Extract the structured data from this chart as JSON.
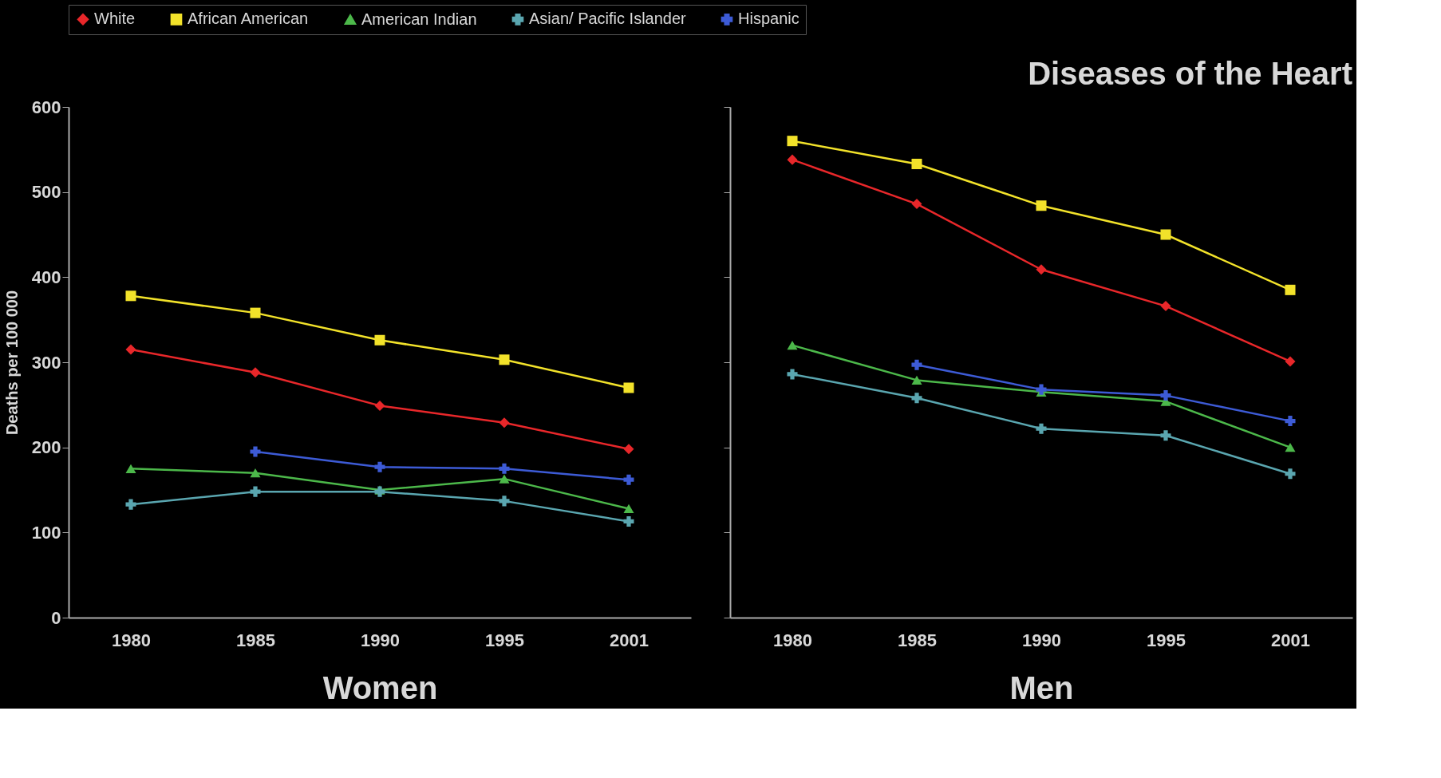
{
  "chart_data": [
    {
      "type": "line",
      "xlabel": "Women",
      "ylabel": "Deaths per 100 000",
      "categories": [
        "1980",
        "1985",
        "1990",
        "1995",
        "2001"
      ],
      "ylim": [
        0,
        600
      ],
      "yticks": [
        0,
        100,
        200,
        300,
        400,
        500,
        600
      ],
      "grid": false,
      "legend": "top",
      "series": [
        {
          "name": "White",
          "color": "#e8272a",
          "marker": "diamond",
          "values": [
            315,
            288,
            249,
            229,
            198
          ]
        },
        {
          "name": "African American",
          "color": "#f2e22a",
          "marker": "square",
          "values": [
            378,
            358,
            326,
            303,
            270
          ]
        },
        {
          "name": "American Indian",
          "color": "#4cb84a",
          "marker": "triangle",
          "values": [
            175,
            170,
            150,
            163,
            128
          ]
        },
        {
          "name": "Asian/ Pacific Islander",
          "color": "#5aa6b0",
          "marker": "cross",
          "values": [
            133,
            148,
            148,
            137,
            113
          ]
        },
        {
          "name": "Hispanic",
          "color": "#3d5bd6",
          "marker": "cross",
          "values": [
            null,
            195,
            177,
            175,
            162
          ]
        }
      ]
    },
    {
      "type": "line",
      "title": "Diseases of the Heart",
      "xlabel": "Men",
      "categories": [
        "1980",
        "1985",
        "1990",
        "1995",
        "2001"
      ],
      "ylim": [
        0,
        600
      ],
      "yticks": [
        0,
        100,
        200,
        300,
        400,
        500,
        600
      ],
      "tick_labels": "x",
      "grid": false,
      "series": [
        {
          "name": "White",
          "color": "#e8272a",
          "marker": "diamond",
          "values": [
            538,
            486,
            409,
            366,
            301
          ]
        },
        {
          "name": "African American",
          "color": "#f2e22a",
          "marker": "square",
          "values": [
            560,
            533,
            484,
            450,
            385
          ]
        },
        {
          "name": "American Indian",
          "color": "#4cb84a",
          "marker": "triangle",
          "values": [
            320,
            279,
            265,
            254,
            200
          ]
        },
        {
          "name": "Asian/ Pacific Islander",
          "color": "#5aa6b0",
          "marker": "cross",
          "values": [
            286,
            258,
            222,
            214,
            169
          ]
        },
        {
          "name": "Hispanic",
          "color": "#3d5bd6",
          "marker": "cross",
          "values": [
            null,
            297,
            268,
            261,
            231
          ]
        }
      ]
    }
  ]
}
